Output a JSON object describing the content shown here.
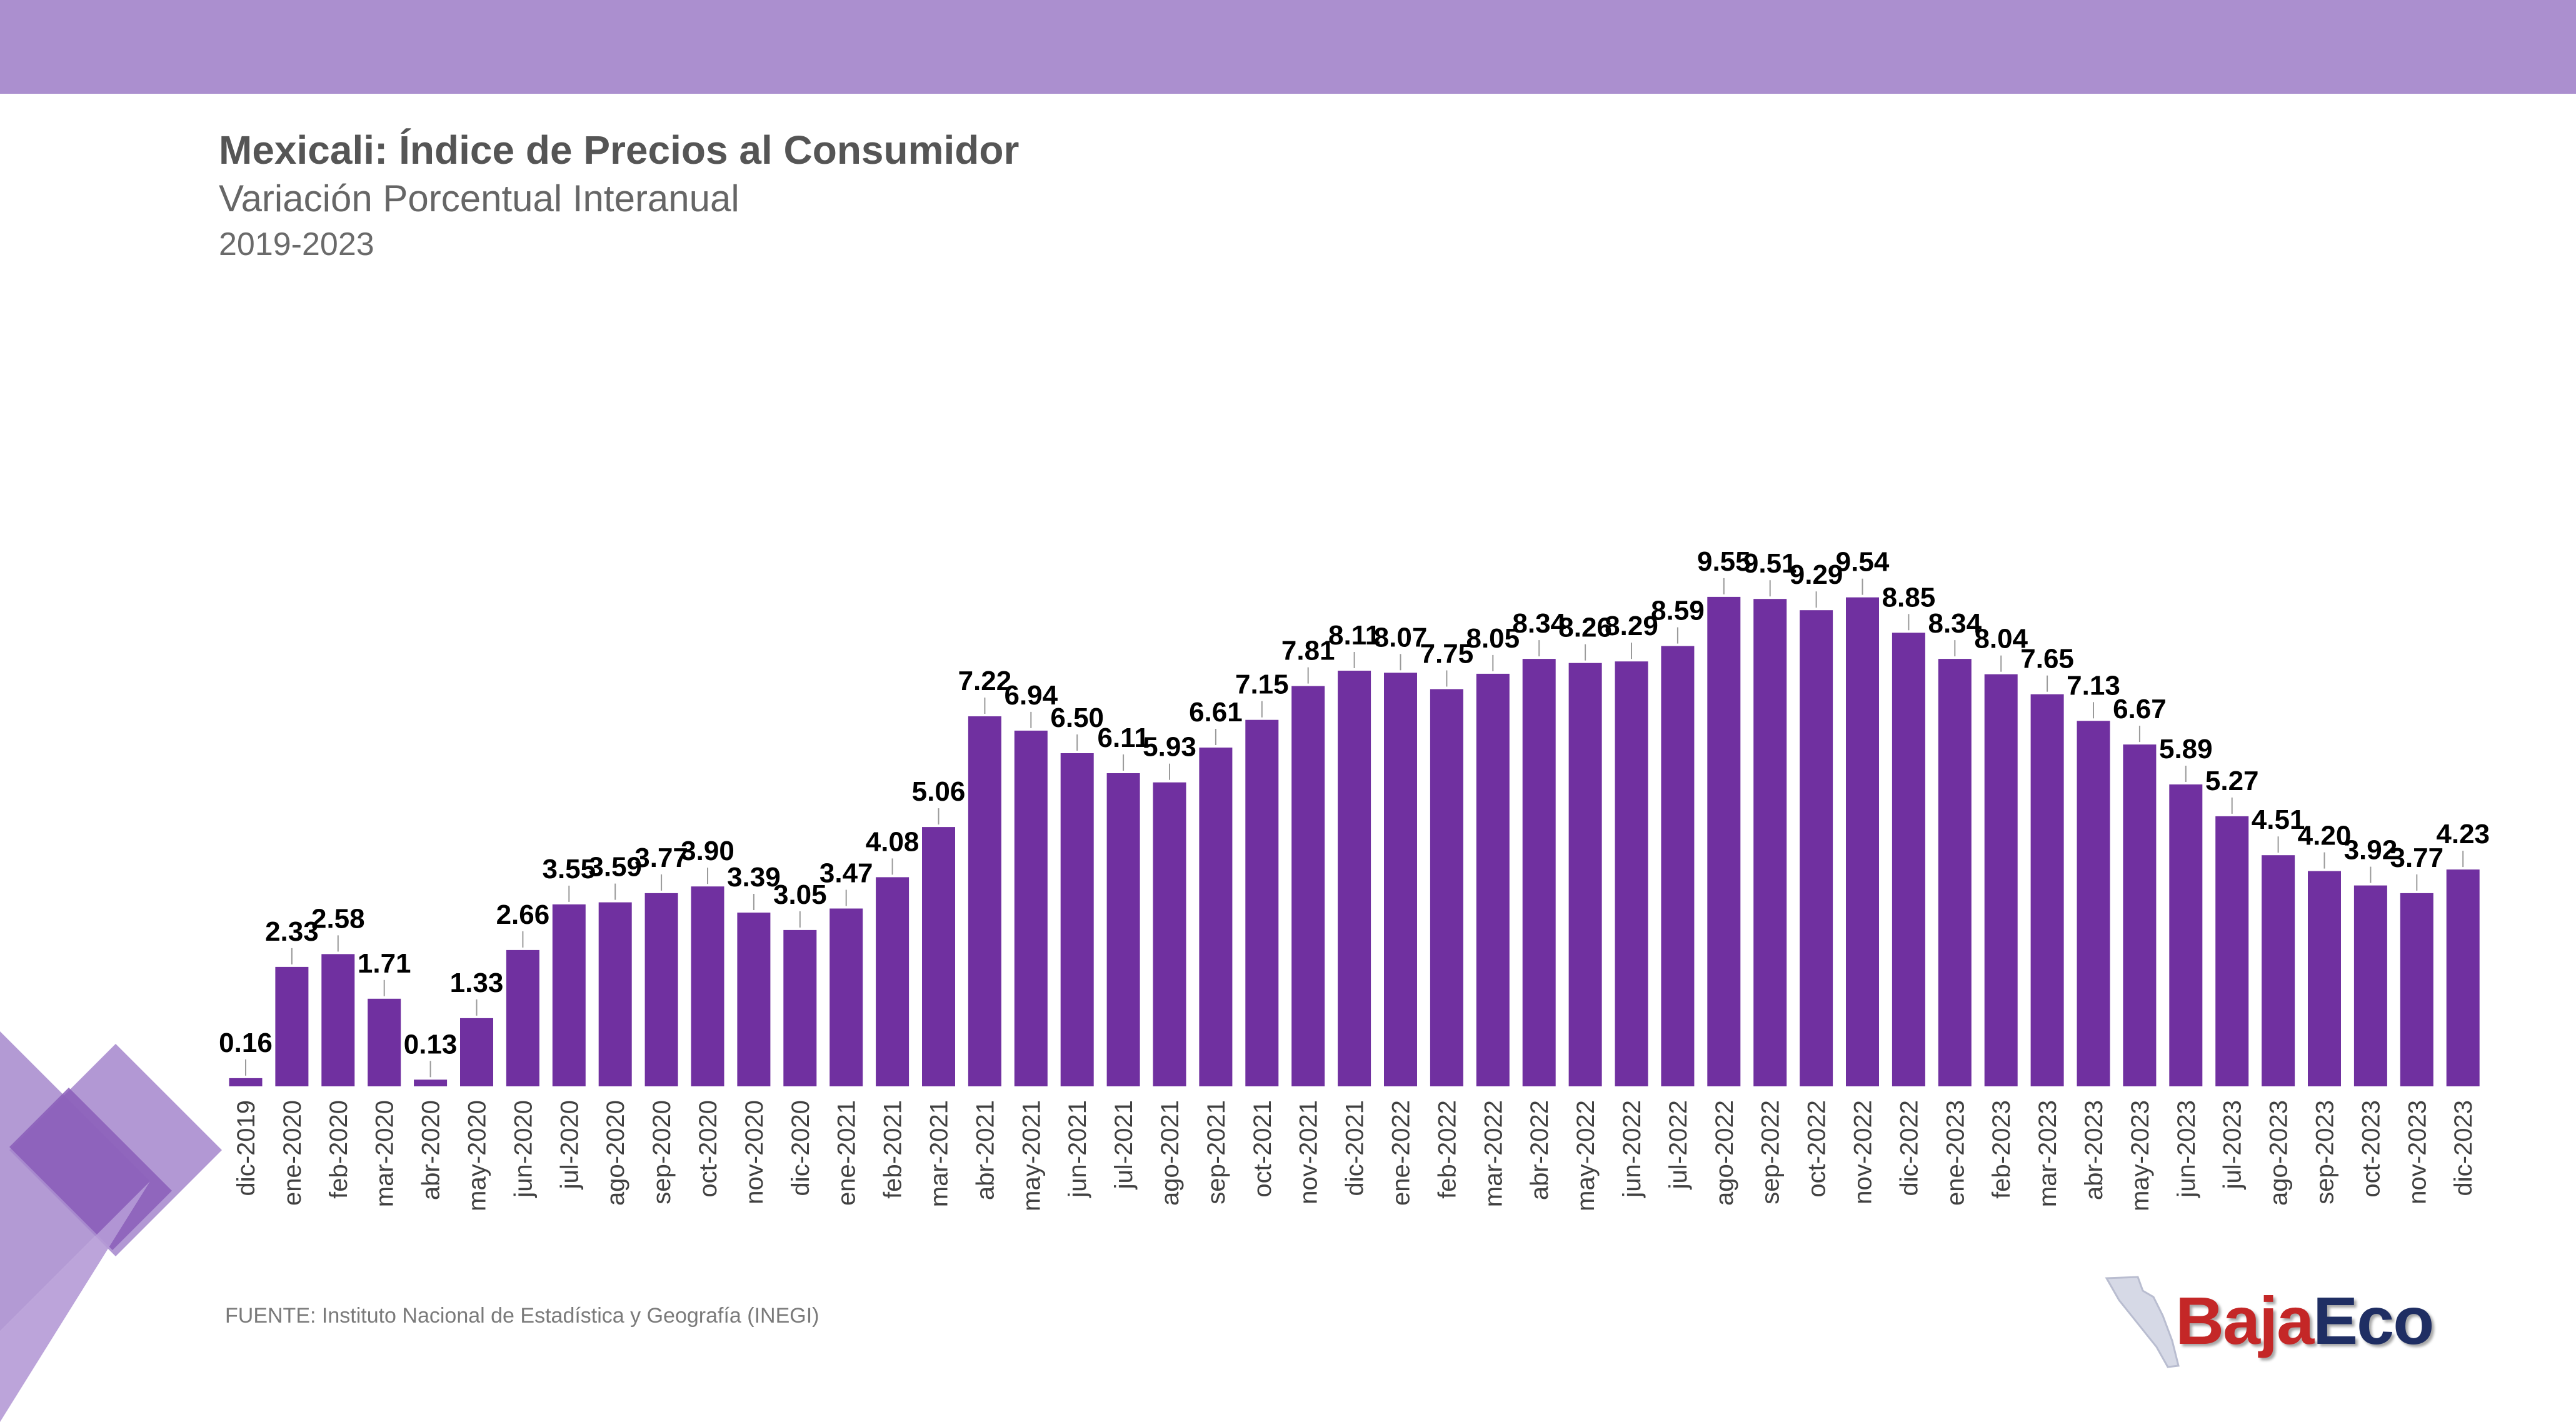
{
  "header": {
    "title": "Mexicali: Índice de Precios al Consumidor",
    "subtitle": "Variación Porcentual Interanual",
    "period": "2019-2023"
  },
  "footer": {
    "source": "FUENTE: Instituto Nacional de Estadística y Geografía (INEGI)",
    "logo_part1": "Baja",
    "logo_part2": "Eco"
  },
  "colors": {
    "bar": "#7030a0",
    "band": "#ab8fcf",
    "label": "#000000",
    "tick": "#404040"
  },
  "chart_data": {
    "type": "bar",
    "title": "Mexicali: Índice de Precios al Consumidor",
    "subtitle": "Variación Porcentual Interanual",
    "xlabel": "",
    "ylabel": "",
    "ylim": [
      0,
      10
    ],
    "grid": false,
    "legend": "none",
    "categories": [
      "dic-2019",
      "ene-2020",
      "feb-2020",
      "mar-2020",
      "abr-2020",
      "may-2020",
      "jun-2020",
      "jul-2020",
      "ago-2020",
      "sep-2020",
      "oct-2020",
      "nov-2020",
      "dic-2020",
      "ene-2021",
      "feb-2021",
      "mar-2021",
      "abr-2021",
      "may-2021",
      "jun-2021",
      "jul-2021",
      "ago-2021",
      "sep-2021",
      "oct-2021",
      "nov-2021",
      "dic-2021",
      "ene-2022",
      "feb-2022",
      "mar-2022",
      "abr-2022",
      "may-2022",
      "jun-2022",
      "jul-2022",
      "ago-2022",
      "sep-2022",
      "oct-2022",
      "nov-2022",
      "dic-2022",
      "ene-2023",
      "feb-2023",
      "mar-2023",
      "abr-2023",
      "may-2023",
      "jun-2023",
      "jul-2023",
      "ago-2023",
      "sep-2023",
      "oct-2023",
      "nov-2023",
      "dic-2023"
    ],
    "values": [
      0.16,
      2.33,
      2.58,
      1.71,
      0.13,
      1.33,
      2.66,
      3.55,
      3.59,
      3.77,
      3.9,
      3.39,
      3.05,
      3.47,
      4.08,
      5.06,
      7.22,
      6.94,
      6.5,
      6.11,
      5.93,
      6.61,
      7.15,
      7.81,
      8.11,
      8.07,
      7.75,
      8.05,
      8.34,
      8.26,
      8.29,
      8.59,
      9.55,
      9.51,
      9.29,
      9.54,
      8.85,
      8.34,
      8.04,
      7.65,
      7.13,
      6.67,
      5.89,
      5.27,
      4.51,
      4.2,
      3.92,
      3.77,
      4.23
    ],
    "data_labels": [
      "0.16",
      "2.33",
      "2.58",
      "1.71",
      "0.13",
      "1.33",
      "2.66",
      "3.55",
      "3.59",
      "3.77",
      "3.90",
      "3.39",
      "3.05",
      "3.47",
      "4.08",
      "5.06",
      "7.22",
      "6.94",
      "6.50",
      "6.11",
      "5.93",
      "6.61",
      "7.15",
      "7.81",
      "8.11",
      "8.07",
      "7.75",
      "8.05",
      "8.34",
      "8.26",
      "8.29",
      "8.59",
      "9.55",
      "9.51",
      "9.29",
      "9.54",
      "8.85",
      "8.34",
      "8.04",
      "7.65",
      "7.13",
      "6.67",
      "5.89",
      "5.27",
      "4.51",
      "4.20",
      "3.92",
      "3.77",
      "4.23"
    ]
  }
}
